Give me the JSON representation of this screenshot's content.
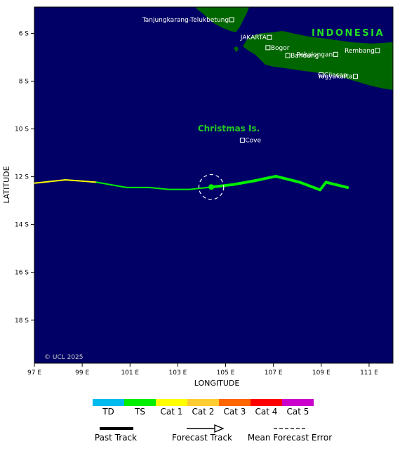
{
  "map": {
    "region_label": "INDONESIA",
    "island_label": "Christmas Is.",
    "copyright": "© UCL 2025",
    "x_axis_label": "LONGITUDE",
    "y_axis_label": "LATITUDE",
    "lon_range": [
      97,
      112
    ],
    "lat_range": [
      19.8,
      4.9
    ],
    "lon_ticks": [
      {
        "value": 97,
        "label": "97 E"
      },
      {
        "value": 99,
        "label": "99 E"
      },
      {
        "value": 101,
        "label": "101 E"
      },
      {
        "value": 103,
        "label": "103 E"
      },
      {
        "value": 105,
        "label": "105 E"
      },
      {
        "value": 107,
        "label": "107 E"
      },
      {
        "value": 109,
        "label": "109 E"
      },
      {
        "value": 111,
        "label": "111 E"
      }
    ],
    "lat_ticks": [
      {
        "value": 6,
        "label": "6 S"
      },
      {
        "value": 8,
        "label": "8 S"
      },
      {
        "value": 10,
        "label": "10 S"
      },
      {
        "value": 12,
        "label": "12 S"
      },
      {
        "value": 14,
        "label": "14 S"
      },
      {
        "value": 16,
        "label": "16 S"
      },
      {
        "value": 18,
        "label": "18 S"
      }
    ],
    "cities": [
      {
        "name": "Tanjungkarang-Telukbetung",
        "lon": 105.25,
        "lat": 5.43,
        "label_side": "left"
      },
      {
        "name": "JAKARTA",
        "lon": 106.83,
        "lat": 6.17,
        "label_side": "left"
      },
      {
        "name": "Bogor",
        "lon": 106.77,
        "lat": 6.6,
        "label_side": "right"
      },
      {
        "name": "Pekalongan",
        "lon": 109.6,
        "lat": 6.88,
        "label_side": "left"
      },
      {
        "name": "Bandung",
        "lon": 107.6,
        "lat": 6.93,
        "label_side": "right"
      },
      {
        "name": "Rembang",
        "lon": 111.35,
        "lat": 6.72,
        "label_side": "left"
      },
      {
        "name": "Cilacap",
        "lon": 109.0,
        "lat": 7.73,
        "label_side": "right"
      },
      {
        "name": "Yogyakarta",
        "lon": 110.43,
        "lat": 7.8,
        "label_side": "left"
      },
      {
        "name": "Cove",
        "lon": 105.7,
        "lat": 10.47,
        "label_side": "right"
      }
    ],
    "colors": {
      "ocean": "#000066",
      "land": "#006600",
      "island_label": "#22cc22",
      "region_label": "#22dd22"
    }
  },
  "storm": {
    "past_track": [
      {
        "lon": 97.0,
        "lat": 12.27,
        "cat": "TS"
      },
      {
        "lon": 98.3,
        "lat": 12.13,
        "cat": "Cat 1"
      },
      {
        "lon": 99.6,
        "lat": 12.23,
        "cat": "Cat 1"
      },
      {
        "lon": 100.85,
        "lat": 12.45,
        "cat": "TS"
      },
      {
        "lon": 101.8,
        "lat": 12.45,
        "cat": "TS"
      },
      {
        "lon": 102.6,
        "lat": 12.53,
        "cat": "TS"
      },
      {
        "lon": 103.5,
        "lat": 12.53,
        "cat": "TS"
      },
      {
        "lon": 104.4,
        "lat": 12.43,
        "cat": "TS"
      }
    ],
    "current": {
      "lon": 104.4,
      "lat": 12.43,
      "cat": "TS"
    },
    "forecast_track": [
      {
        "lon": 104.4,
        "lat": 12.43,
        "cat": "TS"
      },
      {
        "lon": 105.3,
        "lat": 12.33,
        "cat": "TS"
      },
      {
        "lon": 106.2,
        "lat": 12.17,
        "cat": "TS"
      },
      {
        "lon": 107.1,
        "lat": 11.98,
        "cat": "TS"
      },
      {
        "lon": 108.1,
        "lat": 12.23,
        "cat": "TS"
      },
      {
        "lon": 108.95,
        "lat": 12.55,
        "cat": "TS"
      },
      {
        "lon": 109.2,
        "lat": 12.23,
        "cat": "TS"
      },
      {
        "lon": 110.1,
        "lat": 12.45,
        "cat": "TS"
      }
    ],
    "error_radius_deg": 0.52
  },
  "legend": {
    "categories": [
      {
        "label": "TD",
        "color": "#00bbee"
      },
      {
        "label": "TS",
        "color": "#00ee00"
      },
      {
        "label": "Cat 1",
        "color": "#ffff00"
      },
      {
        "label": "Cat 2",
        "color": "#ffcc33"
      },
      {
        "label": "Cat 3",
        "color": "#ff6600"
      },
      {
        "label": "Cat 4",
        "color": "#ff0000"
      },
      {
        "label": "Cat 5",
        "color": "#cc00cc"
      }
    ],
    "past_track_label": "Past Track",
    "forecast_track_label": "Forecast Track",
    "error_label": "Mean Forecast Error"
  }
}
